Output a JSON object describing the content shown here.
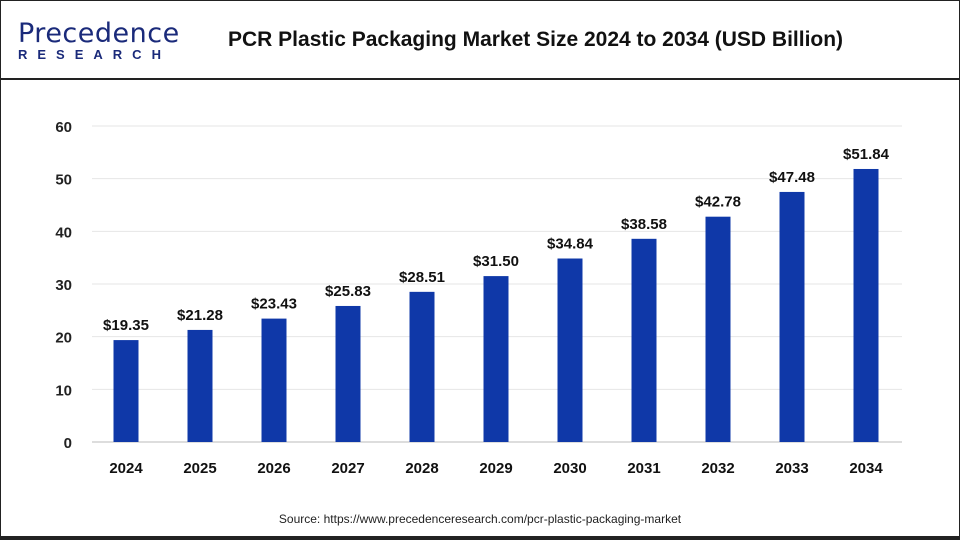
{
  "logo": {
    "main": "Precedence",
    "sub": "RESEARCH"
  },
  "header": {
    "title": "PCR Plastic Packaging Market Size 2024 to 2034 (USD Billion)"
  },
  "source": "Source: https://www.precedenceresearch.com/pcr-plastic-packaging-market",
  "chart_data": {
    "type": "bar",
    "title": "PCR Plastic Packaging Market Size 2024 to 2034 (USD Billion)",
    "categories": [
      "2024",
      "2025",
      "2026",
      "2027",
      "2028",
      "2029",
      "2030",
      "2031",
      "2032",
      "2033",
      "2034"
    ],
    "values": [
      19.35,
      21.28,
      23.43,
      25.83,
      28.51,
      31.5,
      34.84,
      38.58,
      42.78,
      47.48,
      51.84
    ],
    "data_labels": [
      "$19.35",
      "$21.28",
      "$23.43",
      "$25.83",
      "$28.51",
      "$31.50",
      "$34.84",
      "$38.58",
      "$42.78",
      "$47.48",
      "$51.84"
    ],
    "yticks": [
      0,
      10,
      20,
      30,
      40,
      50,
      60
    ],
    "ylim": [
      0,
      60
    ],
    "grid": true,
    "bar_color": "#0f38a8"
  }
}
